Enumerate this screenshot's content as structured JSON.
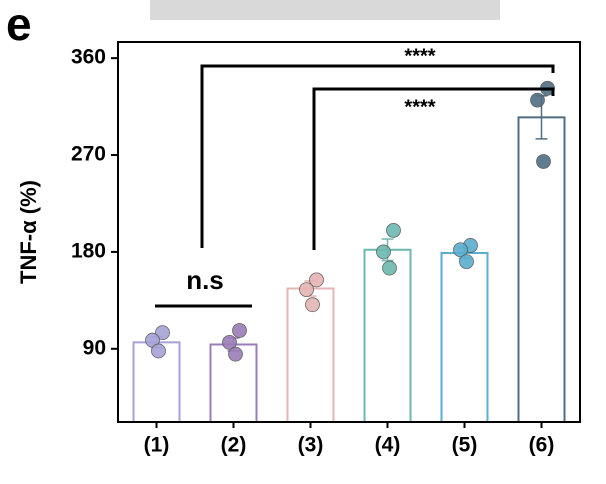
{
  "chart_data": {
    "type": "bar",
    "panel_label": "e",
    "y_label": "TNF-α (%)",
    "categories": [
      "(1)",
      "(2)",
      "(3)",
      "(4)",
      "(5)",
      "(6)"
    ],
    "values": [
      96,
      94,
      146,
      182,
      179,
      305
    ],
    "errors": [
      5,
      6,
      7,
      10,
      5,
      20
    ],
    "points": [
      [
        105,
        98,
        88
      ],
      [
        107,
        96,
        85
      ],
      [
        154,
        145,
        131
      ],
      [
        200,
        180,
        165
      ],
      [
        186,
        182,
        171
      ],
      [
        332,
        321,
        264
      ]
    ],
    "colors": [
      "#a6a2d8",
      "#9a7db8",
      "#e6b4b4",
      "#6cb9b0",
      "#5aaed0",
      "#4f6e84"
    ],
    "ylim": [
      22,
      375
    ],
    "yticks": [
      90,
      180,
      270,
      360
    ],
    "annotations": [
      "n.s",
      "****",
      "****"
    ]
  }
}
